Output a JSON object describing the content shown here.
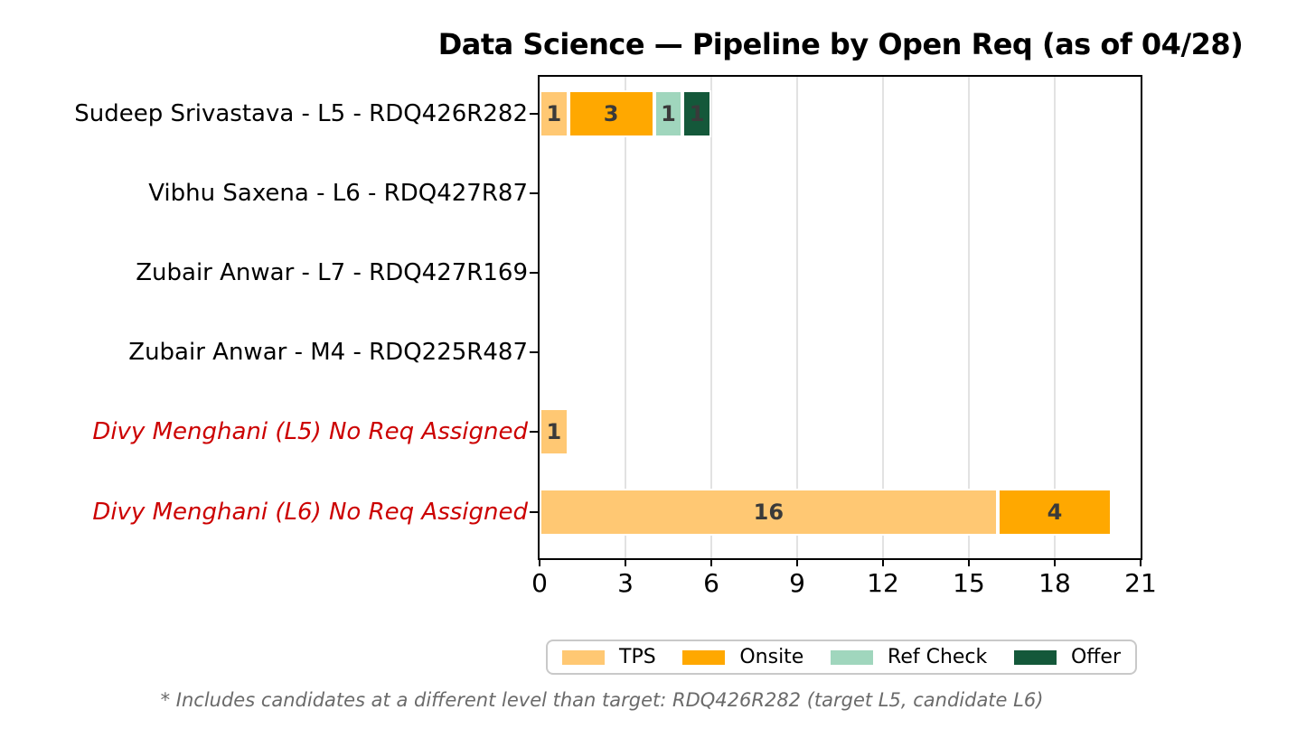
{
  "chart_data": {
    "type": "bar",
    "orientation": "horizontal",
    "stacked": true,
    "title": "Data Science — Pipeline by Open Req (as of 04/28)",
    "categories": [
      "Sudeep Srivastava - L5 - RDQ426R282",
      "Vibhu Saxena - L6 - RDQ427R87",
      "Zubair Anwar - L7 - RDQ427R169",
      "Zubair Anwar - M4 - RDQ225R487",
      "Divy Menghani (L5) No Req Assigned",
      "Divy Menghani (L6) No Req Assigned"
    ],
    "category_flagged": [
      false,
      false,
      false,
      false,
      true,
      true
    ],
    "series": [
      {
        "name": "TPS",
        "color": "#FFC873",
        "values": [
          1,
          0,
          0,
          0,
          1,
          16
        ]
      },
      {
        "name": "Onsite",
        "color": "#FFA800",
        "values": [
          3,
          0,
          0,
          0,
          0,
          4
        ]
      },
      {
        "name": "Ref Check",
        "color": "#A0D6BD",
        "values": [
          1,
          0,
          0,
          0,
          0,
          0
        ]
      },
      {
        "name": "Offer",
        "color": "#14583A",
        "values": [
          1,
          0,
          0,
          0,
          0,
          0
        ]
      }
    ],
    "xlim": [
      0,
      21
    ],
    "xticks": [
      0,
      3,
      6,
      9,
      12,
      15,
      18,
      21
    ],
    "grid": true,
    "legend_position": "bottom",
    "colors": {
      "bar_label": "#3A3A3A",
      "flagged_label": "#CC0000",
      "normal_label": "#000000",
      "gridline": "#E2E2E2",
      "footnote": "#6A6A6A"
    },
    "footnote": "* Includes candidates at a different level than target: RDQ426R282 (target L5, candidate L6)"
  }
}
